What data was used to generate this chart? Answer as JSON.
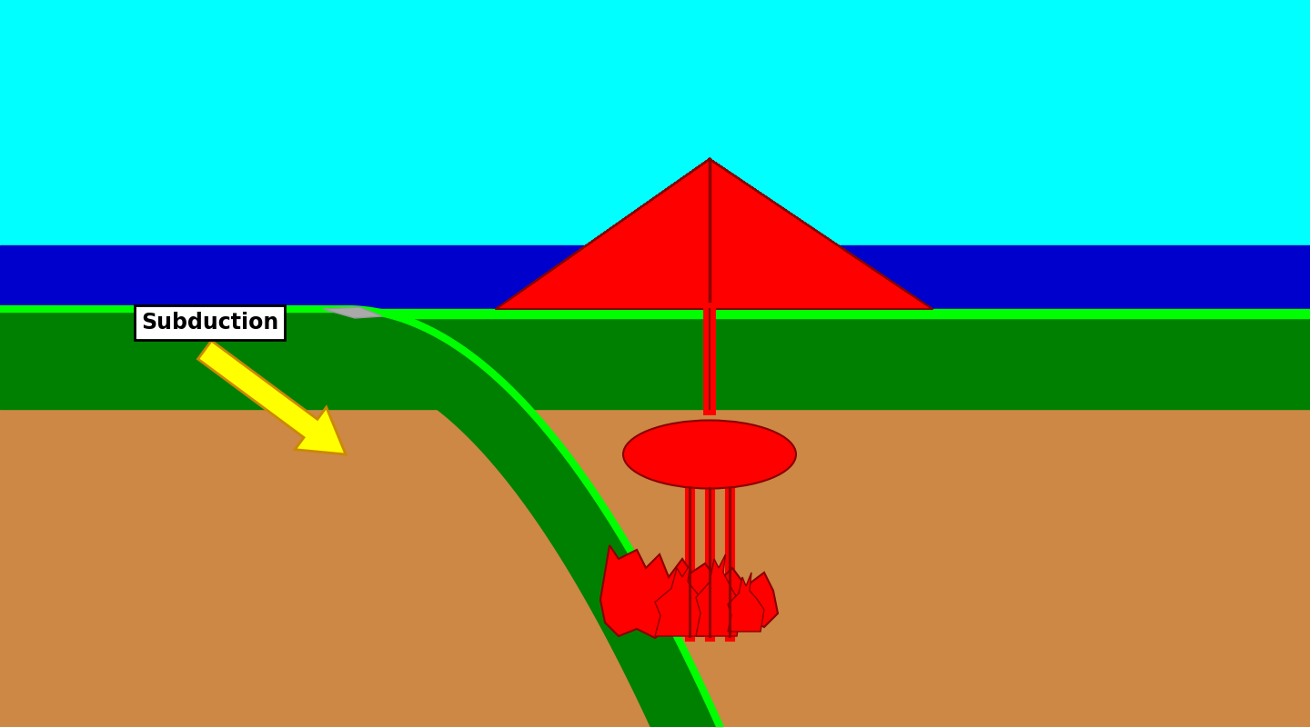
{
  "sky_color": "#00FFFF",
  "ocean_color": "#0000CC",
  "cont_plate_color": "#008000",
  "cont_edge_color": "#00FF00",
  "mantle_color": "#CC8844",
  "magma_color": "#FF0000",
  "magma_dark_color": "#880000",
  "subduction_label": "Subduction",
  "label_bg": "#FFFFFF",
  "label_fg": "#000000",
  "arrow_color": "#FFFF00",
  "arrow_edge": "#CC8800",
  "gray_color": "#AAAAAA",
  "fig_width": 14.4,
  "fig_height": 8.0,
  "dpi": 100
}
